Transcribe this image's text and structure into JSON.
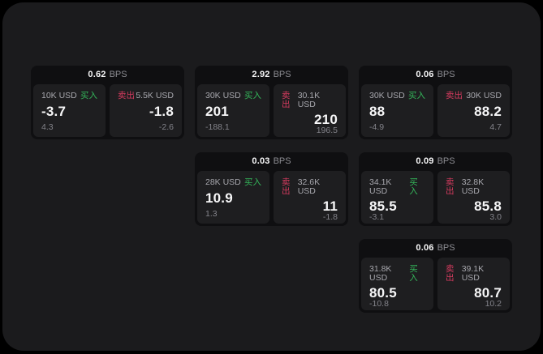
{
  "theme": {
    "bg": "#000000",
    "panel": "#1b1b1d",
    "card": "#0f0f11",
    "tile": "#1e1e20",
    "green": "#34b65a",
    "red": "#d63b5f",
    "text": "#f7f7f8",
    "subtext": "#a6a6ac",
    "muted": "#83838a",
    "bpslabel": "#8c8c92"
  },
  "labels": {
    "bps": "BPS",
    "buy": "买入",
    "sell": "卖出"
  },
  "cards": [
    {
      "col": 1,
      "row": 1,
      "spread": "0.62",
      "buy": {
        "amount": "10K USD",
        "price": "-3.7",
        "delta": "4.3"
      },
      "sell": {
        "amount": "5.5K USD",
        "price": "-1.8",
        "delta": "-2.6"
      }
    },
    {
      "col": 2,
      "row": 1,
      "spread": "2.92",
      "buy": {
        "amount": "30K USD",
        "price": "201",
        "delta": "-188.1"
      },
      "sell": {
        "amount": "30.1K USD",
        "price": "210",
        "delta": "196.5"
      }
    },
    {
      "col": 3,
      "row": 1,
      "spread": "0.06",
      "buy": {
        "amount": "30K USD",
        "price": "88",
        "delta": "-4.9"
      },
      "sell": {
        "amount": "30K USD",
        "price": "88.2",
        "delta": "4.7"
      }
    },
    {
      "col": 2,
      "row": 2,
      "spread": "0.03",
      "buy": {
        "amount": "28K USD",
        "price": "10.9",
        "delta": "1.3"
      },
      "sell": {
        "amount": "32.6K USD",
        "price": "11",
        "delta": "-1.8"
      }
    },
    {
      "col": 3,
      "row": 2,
      "spread": "0.09",
      "buy": {
        "amount": "34.1K USD",
        "price": "85.5",
        "delta": "-3.1"
      },
      "sell": {
        "amount": "32.8K USD",
        "price": "85.8",
        "delta": "3.0"
      }
    },
    {
      "col": 3,
      "row": 3,
      "spread": "0.06",
      "buy": {
        "amount": "31.8K USD",
        "price": "80.5",
        "delta": "-10.8"
      },
      "sell": {
        "amount": "39.1K USD",
        "price": "80.7",
        "delta": "10.2"
      }
    }
  ]
}
